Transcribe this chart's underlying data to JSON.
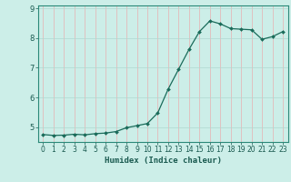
{
  "title": "",
  "xlabel": "Humidex (Indice chaleur)",
  "background_color": "#cceee8",
  "grid_color_v": "#e8b0b0",
  "grid_color_h": "#b0d8d0",
  "line_color": "#1a6b5a",
  "marker_color": "#1a6b5a",
  "xlim": [
    -0.5,
    23.5
  ],
  "ylim": [
    4.5,
    9.1
  ],
  "yticks": [
    5,
    6,
    7,
    8,
    9
  ],
  "xticks": [
    0,
    1,
    2,
    3,
    4,
    5,
    6,
    7,
    8,
    9,
    10,
    11,
    12,
    13,
    14,
    15,
    16,
    17,
    18,
    19,
    20,
    21,
    22,
    23
  ],
  "x": [
    0,
    1,
    2,
    3,
    4,
    5,
    6,
    7,
    8,
    9,
    10,
    11,
    12,
    13,
    14,
    15,
    16,
    17,
    18,
    19,
    20,
    21,
    22,
    23
  ],
  "y": [
    4.75,
    4.72,
    4.73,
    4.76,
    4.74,
    4.78,
    4.8,
    4.85,
    4.98,
    5.05,
    5.12,
    5.48,
    6.28,
    6.95,
    7.62,
    8.22,
    8.58,
    8.48,
    8.32,
    8.3,
    8.28,
    7.96,
    8.05,
    8.22
  ]
}
